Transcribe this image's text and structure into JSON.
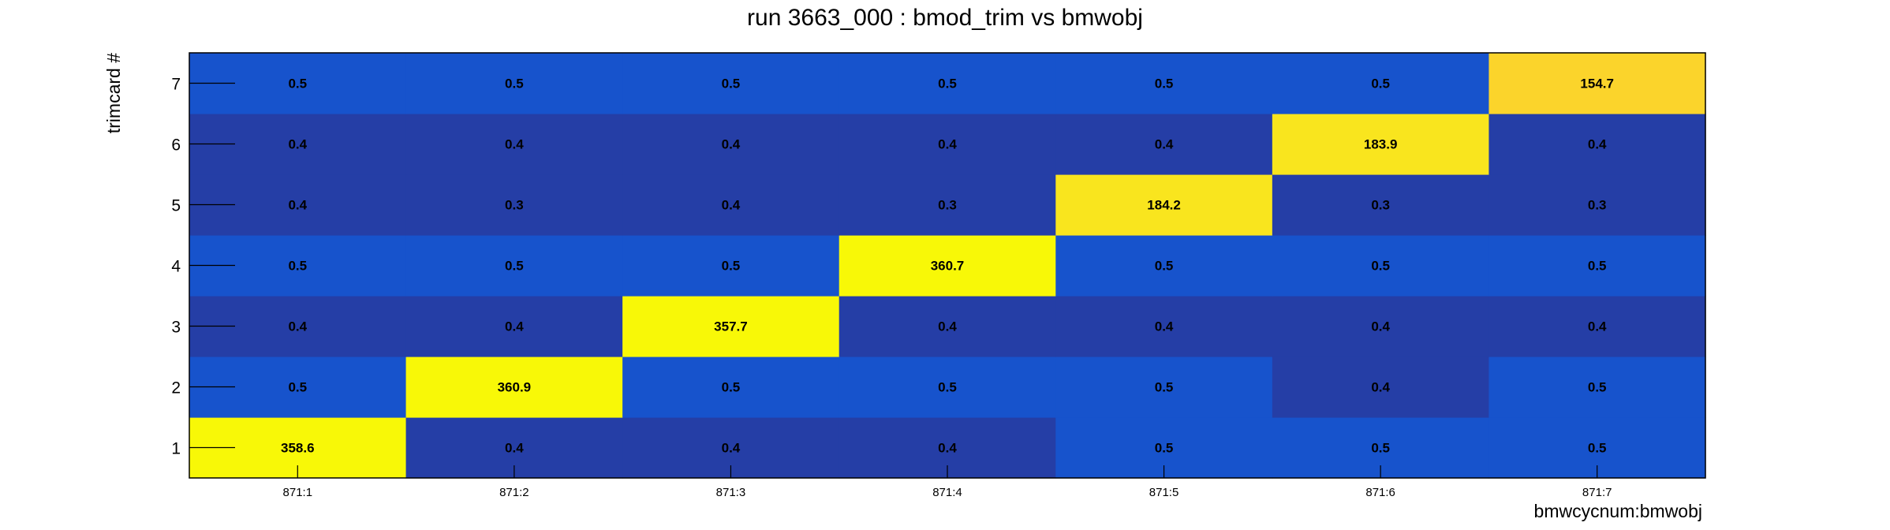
{
  "chart_data": {
    "type": "heatmap",
    "title": "run 3663_000 : bmod_trim vs bmwobj",
    "xlabel": "bmwcycnum:bmwobj",
    "ylabel": "trimcard #",
    "x_categories": [
      "871:1",
      "871:2",
      "871:3",
      "871:4",
      "871:5",
      "871:6",
      "871:7"
    ],
    "y_categories": [
      "1",
      "2",
      "3",
      "4",
      "5",
      "6",
      "7"
    ],
    "values": [
      [
        358.6,
        0.4,
        0.4,
        0.4,
        0.5,
        0.5,
        0.5
      ],
      [
        0.5,
        360.9,
        0.5,
        0.5,
        0.5,
        0.4,
        0.5
      ],
      [
        0.4,
        0.4,
        357.7,
        0.4,
        0.4,
        0.4,
        0.4
      ],
      [
        0.5,
        0.5,
        0.5,
        360.7,
        0.5,
        0.5,
        0.5
      ],
      [
        0.4,
        0.3,
        0.4,
        0.3,
        184.2,
        0.3,
        0.3
      ],
      [
        0.4,
        0.4,
        0.4,
        0.4,
        0.4,
        183.9,
        0.4
      ],
      [
        0.5,
        0.5,
        0.5,
        0.5,
        0.5,
        0.5,
        154.7
      ]
    ],
    "colors": {
      "low": "#253ea6",
      "mid": "#1753cc",
      "high": "#f8f807",
      "high_mid": "#f9e51e",
      "high_low": "#fbd42b"
    }
  }
}
